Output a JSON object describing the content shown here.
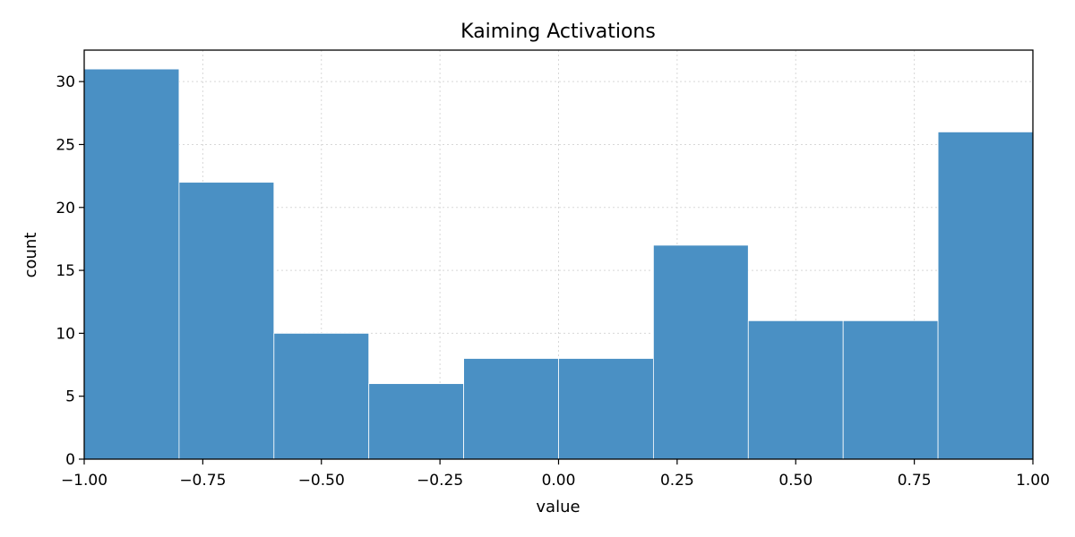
{
  "chart_data": {
    "type": "bar",
    "title": "Kaiming Activations",
    "xlabel": "value",
    "ylabel": "count",
    "bin_edges": [
      -1.0,
      -0.8,
      -0.6,
      -0.4,
      -0.2,
      0.0,
      0.2,
      0.4,
      0.6,
      0.8,
      1.0
    ],
    "values": [
      31,
      22,
      10,
      6,
      8,
      8,
      17,
      11,
      11,
      26
    ],
    "xlim": [
      -1.0,
      1.0
    ],
    "ylim": [
      0,
      32.5
    ],
    "xticks": [
      -1.0,
      -0.75,
      -0.5,
      -0.25,
      0.0,
      0.25,
      0.5,
      0.75,
      1.0
    ],
    "xtick_labels": [
      "−1.00",
      "−0.75",
      "−0.50",
      "−0.25",
      "0.00",
      "0.25",
      "0.50",
      "0.75",
      "1.00"
    ],
    "yticks": [
      0,
      5,
      10,
      15,
      20,
      25,
      30
    ],
    "ytick_labels": [
      "0",
      "5",
      "10",
      "15",
      "20",
      "25",
      "30"
    ],
    "grid": true,
    "bar_color": "#4a90c4",
    "bar_edge_color": "#ffffff"
  }
}
